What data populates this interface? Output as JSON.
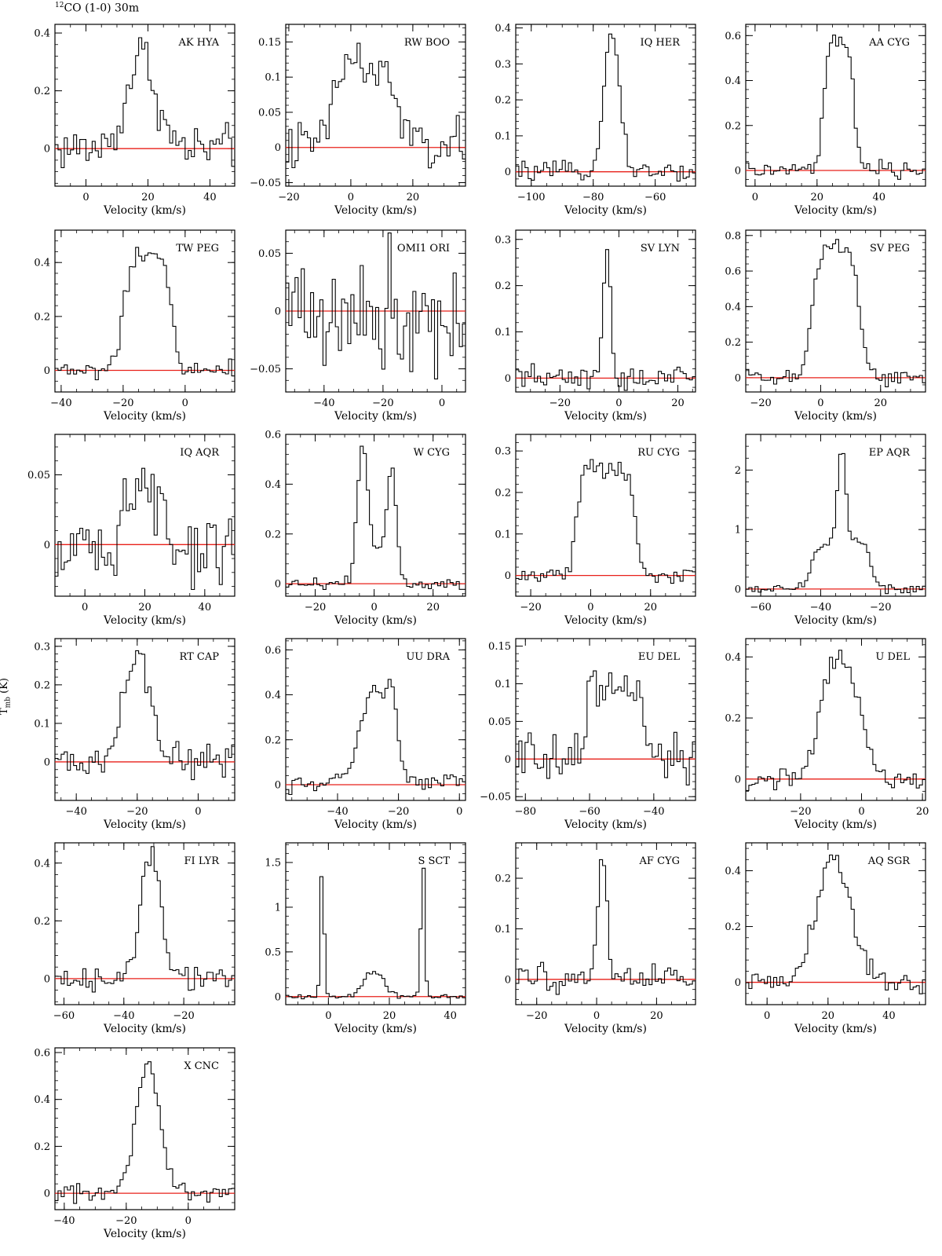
{
  "figure": {
    "title_iso": "12",
    "title_rest": "CO (1-0) 30m",
    "ylabel_main": "T",
    "ylabel_sub": "mb",
    "ylabel_unit": " (K)"
  },
  "colors": {
    "baseline": "#e8201a",
    "axes": "#000000",
    "spectrum": "#000000"
  },
  "chart_data": [
    {
      "type": "line",
      "title": "AK HYA",
      "xlabel": "Velocity (km/s)",
      "ylabel": "T_mb (K)",
      "xlim": [
        -10,
        48
      ],
      "ylim": [
        -0.13,
        0.43
      ],
      "xticks": [
        0,
        20,
        40
      ],
      "yticks": [
        0,
        0.2,
        0.4
      ],
      "ytick_labels": [
        "0",
        "0.2",
        "0.4"
      ],
      "shape": {
        "baseline": 0,
        "noise": 0.04,
        "components": [
          {
            "type": "gauss",
            "center": 18,
            "height": 0.33,
            "width": 4.5
          }
        ]
      }
    },
    {
      "type": "line",
      "title": "RW BOO",
      "xlabel": "Velocity (km/s)",
      "ylabel": "T_mb (K)",
      "xlim": [
        -21,
        37
      ],
      "ylim": [
        -0.055,
        0.175
      ],
      "xticks": [
        -20,
        0,
        20
      ],
      "yticks": [
        -0.05,
        0,
        0.05,
        0.1,
        0.15
      ],
      "ytick_labels": [
        "−0.05",
        "0",
        "0.05",
        "0.1",
        "0.15"
      ],
      "shape": {
        "baseline": 0,
        "noise": 0.018,
        "components": [
          {
            "type": "gauss",
            "center": 0,
            "height": 0.13,
            "width": 4.5
          },
          {
            "type": "gauss",
            "center": 11,
            "height": 0.1,
            "width": 4
          }
        ]
      }
    },
    {
      "type": "line",
      "title": "IQ HER",
      "xlabel": "Velocity (km/s)",
      "ylabel": "T_mb (K)",
      "xlim": [
        -105,
        -47
      ],
      "ylim": [
        -0.04,
        0.41
      ],
      "xticks": [
        -100,
        -80,
        -60
      ],
      "yticks": [
        0,
        0.1,
        0.2,
        0.3,
        0.4
      ],
      "ytick_labels": [
        "0",
        "0.1",
        "0.2",
        "0.3",
        "0.4"
      ],
      "shape": {
        "baseline": 0,
        "noise": 0.012,
        "components": [
          {
            "type": "gauss",
            "center": -74,
            "height": 0.38,
            "width": 2.6
          }
        ]
      }
    },
    {
      "type": "line",
      "title": "AA CYG",
      "xlabel": "Velocity (km/s)",
      "ylabel": "T_mb (K)",
      "xlim": [
        -3,
        55
      ],
      "ylim": [
        -0.07,
        0.65
      ],
      "xticks": [
        0,
        20,
        40
      ],
      "yticks": [
        0,
        0.2,
        0.4,
        0.6
      ],
      "ytick_labels": [
        "0",
        "0.2",
        "0.4",
        "0.6"
      ],
      "shape": {
        "baseline": 0,
        "noise": 0.018,
        "components": [
          {
            "type": "flat",
            "center": 27,
            "height": 0.58,
            "halfwidth": 5,
            "edge": 0.8
          }
        ]
      }
    },
    {
      "type": "line",
      "title": "TW PEG",
      "xlabel": "Velocity (km/s)",
      "ylabel": "T_mb (K)",
      "xlim": [
        -42,
        16
      ],
      "ylim": [
        -0.08,
        0.52
      ],
      "xticks": [
        -40,
        -20,
        0
      ],
      "yticks": [
        0,
        0.2,
        0.4
      ],
      "ytick_labels": [
        "0",
        "0.2",
        "0.4"
      ],
      "shape": {
        "baseline": 0,
        "noise": 0.02,
        "components": [
          {
            "type": "flat",
            "center": -12,
            "height": 0.42,
            "halfwidth": 8,
            "edge": 1.2
          }
        ]
      }
    },
    {
      "type": "line",
      "title": "OMI1 ORI",
      "xlabel": "Velocity (km/s)",
      "ylabel": "T_mb (K)",
      "xlim": [
        -53,
        8
      ],
      "ylim": [
        -0.07,
        0.07
      ],
      "xticks": [
        -40,
        -20,
        0
      ],
      "yticks": [
        -0.05,
        0,
        0.05
      ],
      "ytick_labels": [
        "−0.05",
        "0",
        "0.05"
      ],
      "shape": {
        "baseline": 0,
        "noise": 0.028,
        "components": []
      }
    },
    {
      "type": "line",
      "title": "SV LYN",
      "xlabel": "Velocity (km/s)",
      "ylabel": "T_mb (K)",
      "xlim": [
        -35,
        26
      ],
      "ylim": [
        -0.03,
        0.32
      ],
      "xticks": [
        -20,
        0,
        20
      ],
      "yticks": [
        0,
        0.1,
        0.2,
        0.3
      ],
      "ytick_labels": [
        "0",
        "0.1",
        "0.2",
        "0.3"
      ],
      "shape": {
        "baseline": 0,
        "noise": 0.013,
        "components": [
          {
            "type": "gauss",
            "center": -4,
            "height": 0.28,
            "width": 1.2
          }
        ]
      }
    },
    {
      "type": "line",
      "title": "SV PEG",
      "xlabel": "Velocity (km/s)",
      "ylabel": "T_mb (K)",
      "xlim": [
        -25,
        35
      ],
      "ylim": [
        -0.08,
        0.83
      ],
      "xticks": [
        -20,
        0,
        20
      ],
      "yticks": [
        0,
        0.2,
        0.4,
        0.6,
        0.8
      ],
      "ytick_labels": [
        "0",
        "0.2",
        "0.4",
        "0.6",
        "0.8"
      ],
      "shape": {
        "baseline": 0,
        "noise": 0.025,
        "components": [
          {
            "type": "flat",
            "center": 5,
            "height": 0.74,
            "halfwidth": 8,
            "edge": 1.3
          }
        ]
      }
    },
    {
      "type": "line",
      "title": "IQ AQR",
      "xlabel": "Velocity (km/s)",
      "ylabel": "T_mb (K)",
      "xlim": [
        -10,
        50
      ],
      "ylim": [
        -0.037,
        0.079
      ],
      "xticks": [
        0,
        20,
        40
      ],
      "yticks": [
        0,
        0.05
      ],
      "ytick_labels": [
        "0",
        "0.05"
      ],
      "shape": {
        "baseline": 0,
        "noise": 0.014,
        "components": [
          {
            "type": "gauss",
            "center": 20,
            "height": 0.05,
            "width": 4.5
          }
        ]
      }
    },
    {
      "type": "line",
      "title": "W CYG",
      "xlabel": "Velocity (km/s)",
      "ylabel": "T_mb (K)",
      "xlim": [
        -30,
        31
      ],
      "ylim": [
        -0.05,
        0.6
      ],
      "xticks": [
        -20,
        0,
        20
      ],
      "yticks": [
        0,
        0.2,
        0.4,
        0.6
      ],
      "ytick_labels": [
        "0",
        "0.2",
        "0.4",
        "0.6"
      ],
      "shape": {
        "baseline": 0,
        "noise": 0.012,
        "components": [
          {
            "type": "gauss",
            "center": -4,
            "height": 0.52,
            "width": 1.7
          },
          {
            "type": "gauss",
            "center": 6,
            "height": 0.42,
            "width": 1.6
          },
          {
            "type": "gauss",
            "center": 1,
            "height": 0.12,
            "width": 4
          }
        ]
      }
    },
    {
      "type": "line",
      "title": "RU CYG",
      "xlabel": "Velocity (km/s)",
      "ylabel": "T_mb (K)",
      "xlim": [
        -25,
        35
      ],
      "ylim": [
        -0.05,
        0.34
      ],
      "xticks": [
        -20,
        0,
        20
      ],
      "yticks": [
        0,
        0.1,
        0.2,
        0.3
      ],
      "ytick_labels": [
        "0",
        "0.1",
        "0.2",
        "0.3"
      ],
      "shape": {
        "baseline": 0,
        "noise": 0.012,
        "components": [
          {
            "type": "flat",
            "center": 5,
            "height": 0.26,
            "halfwidth": 10,
            "edge": 1
          }
        ]
      }
    },
    {
      "type": "line",
      "title": "EP AQR",
      "xlabel": "Velocity (km/s)",
      "ylabel": "T_mb (K)",
      "xlim": [
        -65,
        -5
      ],
      "ylim": [
        -0.12,
        2.6
      ],
      "xticks": [
        -60,
        -40,
        -20
      ],
      "yticks": [
        0,
        1,
        2
      ],
      "ytick_labels": [
        "0",
        "1",
        "2"
      ],
      "shape": {
        "baseline": 0,
        "noise": 0.035,
        "components": [
          {
            "type": "flat",
            "center": -33,
            "height": 0.8,
            "halfwidth": 10,
            "edge": 1.2
          },
          {
            "type": "gauss",
            "center": -33,
            "height": 1.6,
            "width": 1.3
          }
        ]
      }
    },
    {
      "type": "line",
      "title": "RT CAP",
      "xlabel": "Velocity (km/s)",
      "ylabel": "T_mb (K)",
      "xlim": [
        -47,
        12
      ],
      "ylim": [
        -0.1,
        0.32
      ],
      "xticks": [
        -40,
        -20,
        0
      ],
      "yticks": [
        0,
        0.1,
        0.2,
        0.3
      ],
      "ytick_labels": [
        "0",
        "0.1",
        "0.2",
        "0.3"
      ],
      "shape": {
        "baseline": 0,
        "noise": 0.022,
        "components": [
          {
            "type": "gauss",
            "center": -20,
            "height": 0.28,
            "width": 4.2
          }
        ]
      }
    },
    {
      "type": "line",
      "title": "UU DRA",
      "xlabel": "Velocity (km/s)",
      "ylabel": "T_mb (K)",
      "xlim": [
        -57,
        2
      ],
      "ylim": [
        -0.07,
        0.65
      ],
      "xticks": [
        -40,
        -20,
        0
      ],
      "yticks": [
        0,
        0.2,
        0.4,
        0.6
      ],
      "ytick_labels": [
        "0",
        "0.2",
        "0.4",
        "0.6"
      ],
      "shape": {
        "baseline": 0,
        "noise": 0.02,
        "components": [
          {
            "type": "gauss",
            "center": -28,
            "height": 0.42,
            "width": 4.5
          },
          {
            "type": "gauss",
            "center": -22,
            "height": 0.3,
            "width": 1.6
          }
        ]
      }
    },
    {
      "type": "line",
      "title": "EU DEL",
      "xlabel": "Velocity (km/s)",
      "ylabel": "T_mb (K)",
      "xlim": [
        -83,
        -27
      ],
      "ylim": [
        -0.055,
        0.16
      ],
      "xticks": [
        -80,
        -60,
        -40
      ],
      "yticks": [
        -0.05,
        0,
        0.05,
        0.1,
        0.15
      ],
      "ytick_labels": [
        "−0.05",
        "0",
        "0.05",
        "0.1",
        "0.15"
      ],
      "shape": {
        "baseline": 0,
        "noise": 0.018,
        "components": [
          {
            "type": "flat",
            "center": -52,
            "height": 0.1,
            "halfwidth": 9,
            "edge": 0.8
          }
        ]
      }
    },
    {
      "type": "line",
      "title": "U DEL",
      "xlabel": "Velocity (km/s)",
      "ylabel": "T_mb (K)",
      "xlim": [
        -38,
        21
      ],
      "ylim": [
        -0.07,
        0.46
      ],
      "xticks": [
        -20,
        0,
        20
      ],
      "yticks": [
        0,
        0.2,
        0.4
      ],
      "ytick_labels": [
        "0",
        "0.2",
        "0.4"
      ],
      "shape": {
        "baseline": 0,
        "noise": 0.018,
        "components": [
          {
            "type": "flat",
            "center": -7,
            "height": 0.42,
            "halfwidth": 7,
            "edge": 2
          }
        ]
      }
    },
    {
      "type": "line",
      "title": "FI LYR",
      "xlabel": "Velocity (km/s)",
      "ylabel": "T_mb (K)",
      "xlim": [
        -63,
        -3
      ],
      "ylim": [
        -0.09,
        0.47
      ],
      "xticks": [
        -60,
        -40,
        -20
      ],
      "yticks": [
        0,
        0.2,
        0.4
      ],
      "ytick_labels": [
        "0",
        "0.2",
        "0.4"
      ],
      "shape": {
        "baseline": 0,
        "noise": 0.02,
        "components": [
          {
            "type": "gauss",
            "center": -31,
            "height": 0.42,
            "width": 3.2
          }
        ]
      }
    },
    {
      "type": "line",
      "title": "S SCT",
      "xlabel": "Velocity (km/s)",
      "ylabel": "T_mb (K)",
      "xlim": [
        -14,
        45
      ],
      "ylim": [
        -0.09,
        1.72
      ],
      "xticks": [
        0,
        20,
        40
      ],
      "yticks": [
        0,
        0.5,
        1,
        1.5
      ],
      "ytick_labels": [
        "0",
        "0.5",
        "1",
        "1.5"
      ],
      "shape": {
        "baseline": 0,
        "noise": 0.015,
        "components": [
          {
            "type": "gauss",
            "center": -2,
            "height": 1.5,
            "width": 0.6
          },
          {
            "type": "gauss",
            "center": 31,
            "height": 1.6,
            "width": 0.6
          },
          {
            "type": "gauss",
            "center": 15,
            "height": 0.28,
            "width": 3.2
          }
        ]
      }
    },
    {
      "type": "line",
      "title": "AF CYG",
      "xlabel": "Velocity (km/s)",
      "ylabel": "T_mb (K)",
      "xlim": [
        -27,
        33
      ],
      "ylim": [
        -0.05,
        0.27
      ],
      "xticks": [
        -20,
        0,
        20
      ],
      "yticks": [
        0,
        0.1,
        0.2
      ],
      "ytick_labels": [
        "0",
        "0.1",
        "0.2"
      ],
      "shape": {
        "baseline": 0,
        "noise": 0.014,
        "components": [
          {
            "type": "gauss",
            "center": 2,
            "height": 0.24,
            "width": 1.5
          }
        ]
      }
    },
    {
      "type": "line",
      "title": "AQ SGR",
      "xlabel": "Velocity (km/s)",
      "ylabel": "T_mb (K)",
      "xlim": [
        -7,
        52
      ],
      "ylim": [
        -0.08,
        0.5
      ],
      "xticks": [
        0,
        20,
        40
      ],
      "yticks": [
        0,
        0.2,
        0.4
      ],
      "ytick_labels": [
        "0",
        "0.2",
        "0.4"
      ],
      "shape": {
        "baseline": 0,
        "noise": 0.022,
        "components": [
          {
            "type": "gauss",
            "center": 22,
            "height": 0.45,
            "width": 5.5
          }
        ]
      }
    },
    {
      "type": "line",
      "title": "X CNC",
      "xlabel": "Velocity (km/s)",
      "ylabel": "T_mb (K)",
      "xlim": [
        -43,
        15
      ],
      "ylim": [
        -0.07,
        0.62
      ],
      "xticks": [
        -40,
        -20,
        0
      ],
      "yticks": [
        0,
        0.2,
        0.4,
        0.6
      ],
      "ytick_labels": [
        "0",
        "0.2",
        "0.4",
        "0.6"
      ],
      "shape": {
        "baseline": 0,
        "noise": 0.02,
        "components": [
          {
            "type": "gauss",
            "center": -13,
            "height": 0.55,
            "width": 3.8
          }
        ]
      }
    }
  ]
}
